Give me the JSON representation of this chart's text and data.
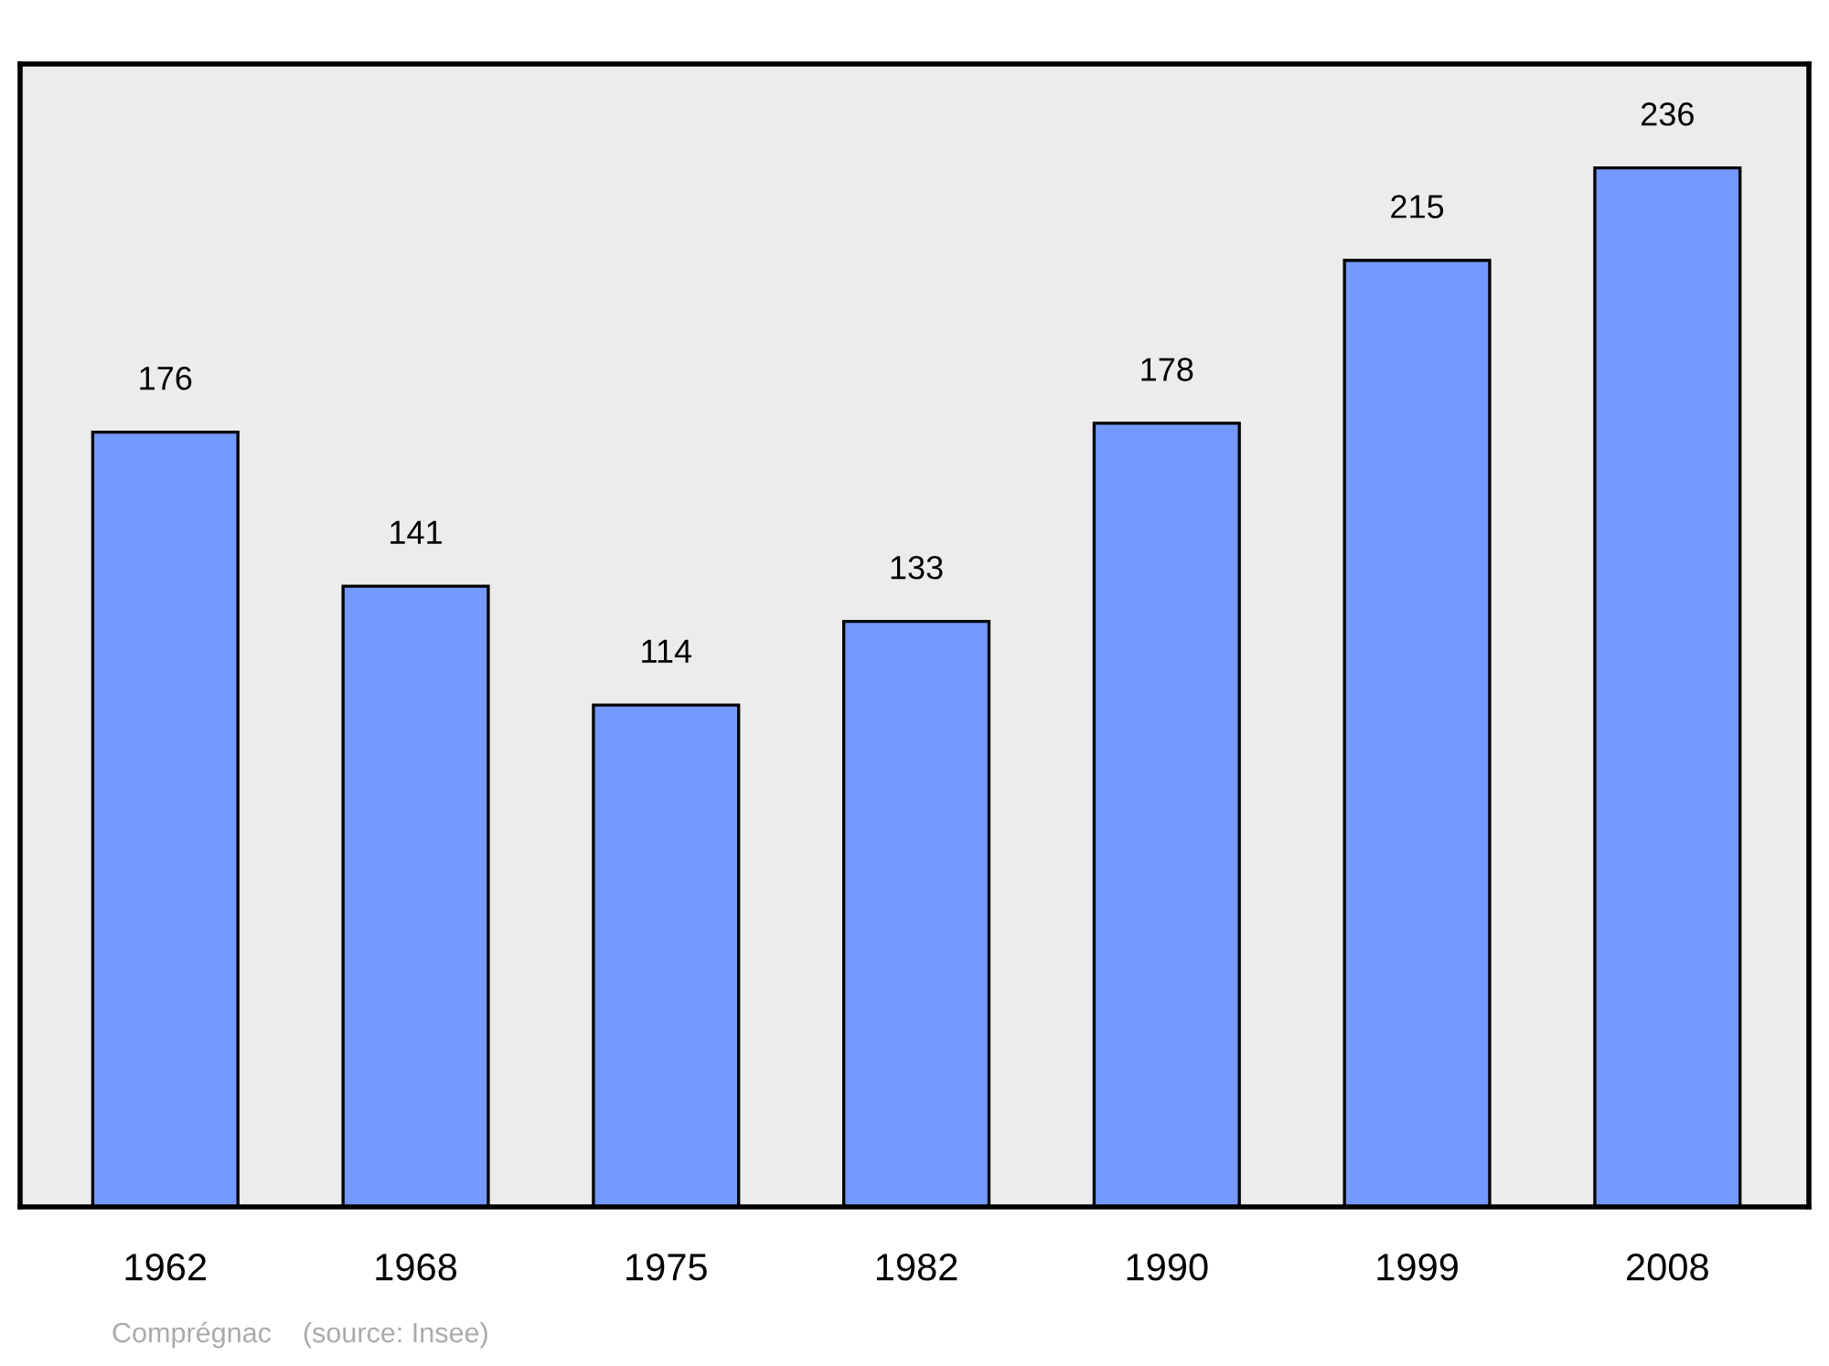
{
  "chart_data": {
    "type": "bar",
    "categories": [
      "1962",
      "1968",
      "1975",
      "1982",
      "1990",
      "1999",
      "2008"
    ],
    "values": [
      176,
      141,
      114,
      133,
      178,
      215,
      236
    ],
    "color": "#7499ff",
    "data_labels": true,
    "grid": false,
    "legend": false,
    "tick_labels": "x",
    "annotations": [
      "Comprégnac    (source: Insee)"
    ]
  }
}
